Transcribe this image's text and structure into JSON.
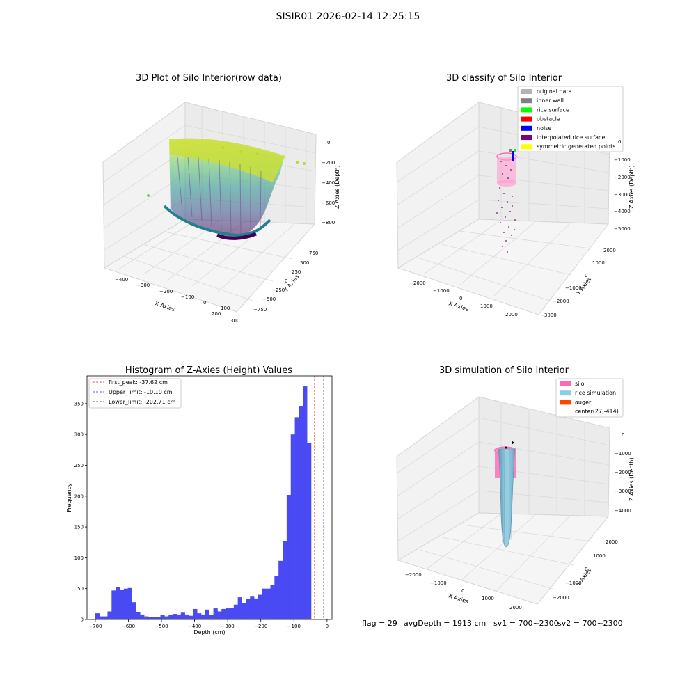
{
  "figure": {
    "suptitle": "SISIR01 2026-02-14 12:25:15",
    "footer": {
      "flag": "flag = 29",
      "avg": "avgDepth = 1913 cm",
      "sv1": "sv1 = 700~2300",
      "sv2": "sv2 = 700~2300"
    }
  },
  "colors": {
    "pane": "#f2f2f2",
    "pane_side": "#e8e8e8",
    "grid": "#d6d6d6",
    "hist_bar": "#4a4af5",
    "first_peak": "#e41a1c",
    "limits": "#1f1fd6",
    "silo": "#ff69b4",
    "rice_sim": "#8ccde6",
    "auger": "#ff4500"
  },
  "chart_data": [
    {
      "id": "raw",
      "type": "scatter",
      "title": "3D Plot of Silo Interior(row data)",
      "xlabel": "X Axies",
      "ylabel": "Y Axies",
      "zlabel": "Z Axies (Depth)",
      "xticks": [
        "−400",
        "−300",
        "−200",
        "−100",
        "0",
        "100",
        "200",
        "300"
      ],
      "yticks": [
        "750",
        "500",
        "250",
        "0",
        "−250",
        "−500",
        "−750"
      ],
      "zticks": [
        "0",
        "−200",
        "−400",
        "−600",
        "−800"
      ],
      "colormap": "viridis",
      "description_series": "point cloud of silo interior (depth 0 to −800)"
    },
    {
      "id": "classify",
      "type": "scatter",
      "title": "3D classify of Silo Interior",
      "xlabel": "X Axies",
      "ylabel": "Y Axies",
      "zlabel": "Z Axies (Depth)",
      "xticks": [
        "−2000",
        "−1000",
        "0",
        "1000",
        "2000"
      ],
      "yticks": [
        "2000",
        "1000",
        "0",
        "−1000",
        "−2000",
        "−3000"
      ],
      "zticks": [
        "0",
        "−1000",
        "−2000",
        "−3000",
        "−4000",
        "−5000"
      ],
      "legend": [
        {
          "label": "original data",
          "color": "#b3b3b3"
        },
        {
          "label": "inner wall",
          "color": "#808080"
        },
        {
          "label": "rice surface",
          "color": "#00ff00"
        },
        {
          "label": "obstacle",
          "color": "#ff0000"
        },
        {
          "label": "noise",
          "color": "#0000ff"
        },
        {
          "label": "interpolated rice surface",
          "color": "#800080"
        },
        {
          "label": "symmetric generated points",
          "color": "#ffff00"
        }
      ],
      "legend_loc": "upper right"
    },
    {
      "id": "hist",
      "type": "bar",
      "title": "Histogram of Z-Axies (Height) Values",
      "xlabel": "Depth (cm)",
      "ylabel": "Frequency",
      "xlim": [
        -725,
        15
      ],
      "ylim": [
        0,
        395
      ],
      "xticks": [
        -700,
        -600,
        -500,
        -400,
        -300,
        -200,
        -100,
        0
      ],
      "yticks": [
        0,
        50,
        100,
        150,
        200,
        250,
        300,
        350
      ],
      "bin_start": -700,
      "bin_width": 12.3,
      "counts": [
        10,
        5,
        5,
        13,
        47,
        53,
        48,
        50,
        51,
        28,
        12,
        8,
        5,
        4,
        4,
        4,
        7,
        5,
        8,
        9,
        8,
        11,
        8,
        6,
        17,
        10,
        8,
        16,
        7,
        18,
        13,
        17,
        18,
        19,
        24,
        36,
        27,
        33,
        37,
        34,
        40,
        50,
        50,
        56,
        70,
        95,
        127,
        202,
        300,
        328,
        346,
        378,
        286
      ],
      "lines": [
        {
          "label": "first_peak: -37.62 cm",
          "x": -37.62,
          "style": "first_peak"
        },
        {
          "label": "Upper_limit: -10.10 cm",
          "x": -10.1,
          "style": "limits"
        },
        {
          "label": "Lower_limit: -202.71 cm",
          "x": -202.71,
          "style": "limits"
        }
      ],
      "legend_loc": "upper left"
    },
    {
      "id": "sim",
      "type": "scatter",
      "title": "3D simulation of Silo Interior",
      "xlabel": "X Axies",
      "ylabel": "Y Axies",
      "zlabel": "Z Axies (Depth)",
      "xticks": [
        "−2000",
        "−1000",
        "0",
        "1000",
        "2000"
      ],
      "yticks": [
        "2000",
        "1000",
        "0",
        "−1000",
        "−2000"
      ],
      "zticks": [
        "0",
        "−1000",
        "−2000",
        "−3000",
        "−4000"
      ],
      "legend": [
        {
          "label": "silo",
          "color": "#ff69b4"
        },
        {
          "label": "rice simulation",
          "color": "#8ccde6"
        },
        {
          "label": "auger",
          "color": "#ff4500"
        },
        {
          "label": "center(27,-414)",
          "color": null
        }
      ],
      "legend_loc": "upper right"
    }
  ]
}
